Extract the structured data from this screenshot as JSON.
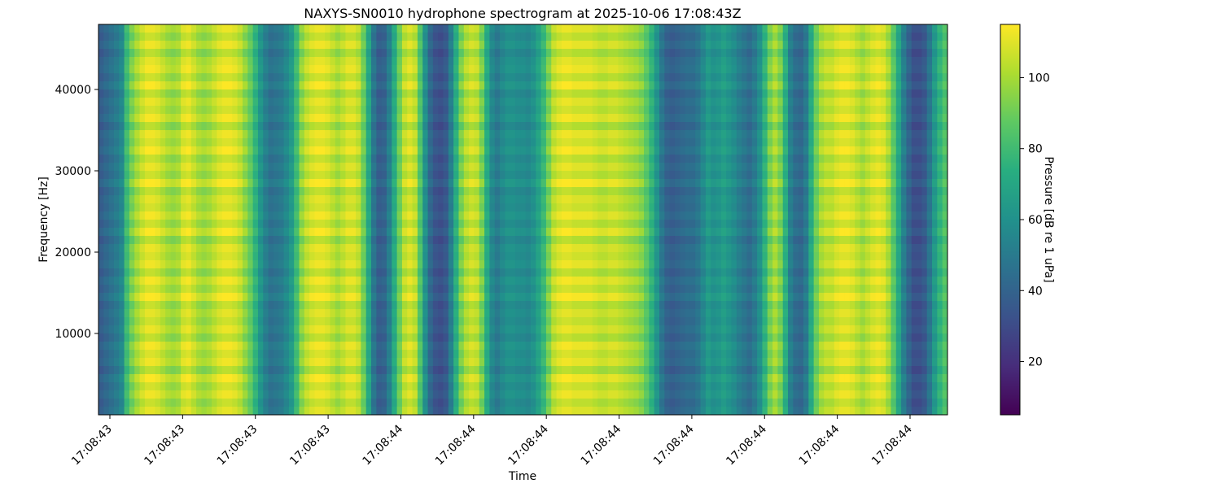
{
  "chart_data": {
    "type": "heatmap",
    "title": "NAXYS-SN0010 hydrophone spectrogram at 2025-10-06 17:08:43Z",
    "xlabel": "Time",
    "ylabel": "Frequency [Hz]",
    "x_tick_labels": [
      "17:08:43",
      "17:08:43",
      "17:08:43",
      "17:08:43",
      "17:08:44",
      "17:08:44",
      "17:08:44",
      "17:08:44",
      "17:08:44",
      "17:08:44",
      "17:08:44",
      "17:08:44"
    ],
    "y_ticks": [
      10000,
      20000,
      30000,
      40000
    ],
    "y_tick_labels": [
      "10000",
      "20000",
      "30000",
      "40000"
    ],
    "ylim": [
      0,
      48000
    ],
    "colorbar": {
      "label": "Pressure [dB re 1 uPa]",
      "ticks": [
        20,
        40,
        60,
        80,
        100
      ],
      "tick_labels": [
        "20",
        "40",
        "60",
        "80",
        "100"
      ],
      "range": [
        5,
        115
      ],
      "colormap": "viridis"
    },
    "column_levels_db": [
      38,
      42,
      46,
      50,
      56,
      80,
      92,
      100,
      106,
      110,
      110,
      108,
      104,
      100,
      98,
      100,
      108,
      110,
      105,
      100,
      98,
      100,
      104,
      108,
      110,
      110,
      108,
      104,
      96,
      88,
      76,
      62,
      52,
      46,
      48,
      50,
      56,
      64,
      80,
      96,
      104,
      108,
      110,
      110,
      108,
      104,
      100,
      104,
      108,
      108,
      104,
      90,
      70,
      48,
      38,
      40,
      52,
      72,
      90,
      104,
      108,
      104,
      84,
      60,
      42,
      34,
      32,
      36,
      52,
      74,
      92,
      102,
      106,
      104,
      92,
      72,
      56,
      50,
      56,
      60,
      60,
      58,
      58,
      56,
      60,
      68,
      78,
      92,
      104,
      108,
      110,
      110,
      108,
      108,
      108,
      108,
      106,
      104,
      104,
      106,
      106,
      104,
      102,
      100,
      98,
      94,
      86,
      76,
      62,
      48,
      40,
      38,
      40,
      42,
      44,
      44,
      48,
      56,
      64,
      60,
      62,
      66,
      62,
      58,
      52,
      48,
      44,
      50,
      60,
      76,
      92,
      100,
      92,
      74,
      52,
      44,
      42,
      50,
      72,
      90,
      100,
      104,
      104,
      108,
      110,
      110,
      108,
      104,
      100,
      104,
      108,
      110,
      108,
      100,
      86,
      70,
      52,
      40,
      32,
      32,
      36,
      48,
      64,
      76,
      84
    ],
    "band_modulation_db": [
      2,
      -4,
      3,
      -6,
      1,
      4,
      -3,
      5,
      -5,
      2,
      -2,
      4,
      -6,
      3,
      -1,
      5,
      -4,
      2,
      -3,
      6,
      -5,
      1,
      -2,
      4,
      -3,
      5,
      -6,
      2,
      -1,
      3,
      -5,
      4,
      -2,
      6,
      -4,
      1,
      -3,
      2,
      -5,
      4,
      -1,
      3,
      -6,
      5,
      -2,
      3,
      -4,
      1
    ]
  }
}
